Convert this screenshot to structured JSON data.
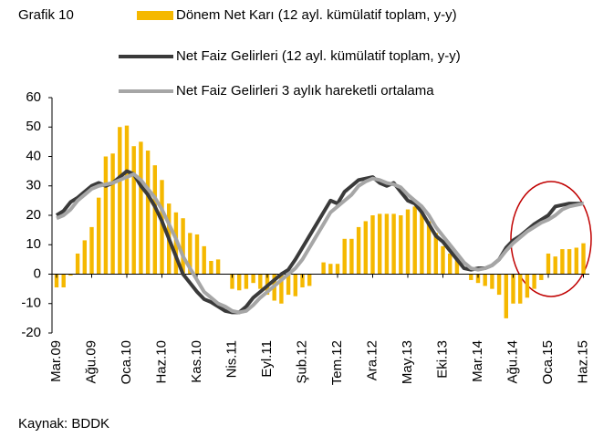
{
  "chart_data": {
    "type": "bar",
    "title": "Grafik 10",
    "source": "Kaynak: BDDK",
    "categories": [
      "Mar.09",
      null,
      null,
      null,
      null,
      "Ağu.09",
      null,
      null,
      null,
      null,
      "Oca.10",
      null,
      null,
      null,
      null,
      "Haz.10",
      null,
      null,
      null,
      null,
      "Kas.10",
      null,
      null,
      null,
      null,
      "Nis.11",
      null,
      null,
      null,
      null,
      "Eyl.11",
      null,
      null,
      null,
      null,
      "Şub.12",
      null,
      null,
      null,
      null,
      "Tem.12",
      null,
      null,
      null,
      null,
      "Ara.12",
      null,
      null,
      null,
      null,
      "May.13",
      null,
      null,
      null,
      null,
      "Eki.13",
      null,
      null,
      null,
      null,
      "Mar.14",
      null,
      null,
      null,
      null,
      "Ağu.14",
      null,
      null,
      null,
      null,
      "Oca.15",
      null,
      null,
      null,
      null,
      "Haz.15"
    ],
    "ylim": [
      -20,
      60
    ],
    "yticks": [
      -20,
      -10,
      0,
      10,
      20,
      30,
      40,
      50,
      60
    ],
    "series": [
      {
        "name": "Dönem Net Karı (12 ayl. kümülatif toplam, y-y)",
        "type": "bar",
        "color": "#F5B800",
        "values": [
          -4.5,
          -4.5,
          -0.5,
          7,
          11.5,
          16,
          26,
          40,
          41,
          50,
          50.5,
          43.5,
          45,
          42,
          37,
          32,
          24,
          21,
          19,
          14,
          13.5,
          9.5,
          4.5,
          5,
          0,
          -5,
          -5.5,
          -5,
          -3,
          -5,
          -7,
          -9,
          -10,
          -7,
          -7.5,
          -4.5,
          -4,
          0,
          4,
          3.5,
          3.5,
          12,
          12,
          16,
          18,
          20,
          20.5,
          20.5,
          20.5,
          20,
          22,
          23,
          21,
          18,
          14,
          9.5,
          7,
          5,
          0,
          -2,
          -3,
          -4,
          -5,
          -7,
          -15,
          -10,
          -10,
          -8,
          -5,
          -2,
          7,
          6,
          8.5,
          8.5,
          9,
          10.5
        ]
      },
      {
        "name": "Net Faiz Gelirleri (12 ayl. kümülatif toplam, y-y)",
        "type": "line",
        "color": "#3A3A3A",
        "values": [
          20,
          21.5,
          24.5,
          26,
          28,
          30,
          31,
          30,
          31,
          33,
          35,
          34,
          30,
          27,
          23,
          18,
          12,
          6,
          0,
          -3,
          -6,
          -8.5,
          -9.5,
          -11,
          -12.5,
          -13,
          -13,
          -11,
          -8,
          -6,
          -4,
          -2,
          0,
          1.5,
          5,
          9,
          13,
          17,
          21,
          25,
          24,
          28,
          30,
          32,
          32.5,
          33,
          31,
          30,
          31,
          28,
          25,
          24,
          21,
          17,
          13,
          11,
          8,
          5,
          2,
          1.5,
          2,
          2,
          3,
          5,
          9,
          11.5,
          13,
          15,
          17,
          18.5,
          20,
          23,
          23.5,
          24,
          24,
          24
        ]
      },
      {
        "name": "Net Faiz Gelirleri 3 aylık hareketli ortalama",
        "type": "line",
        "color": "#A6A6A6",
        "values": [
          19,
          20,
          22,
          25,
          27,
          29,
          30,
          30.5,
          31,
          32,
          33,
          34,
          32,
          29,
          26,
          22,
          17,
          12,
          6,
          2,
          -2,
          -6,
          -8,
          -10,
          -11,
          -12.5,
          -13,
          -12.5,
          -10.5,
          -8,
          -6,
          -4,
          -2,
          0,
          2,
          5,
          9,
          13,
          17,
          21,
          23,
          25,
          27,
          30,
          31.5,
          32.5,
          32,
          31,
          30.5,
          29.5,
          27,
          25,
          23,
          20,
          16,
          13,
          10,
          7,
          4,
          2,
          1.5,
          2,
          3,
          5,
          8,
          10.5,
          12.5,
          14.5,
          16,
          17.5,
          18.5,
          20,
          22,
          23,
          23.5,
          24
        ]
      }
    ]
  }
}
